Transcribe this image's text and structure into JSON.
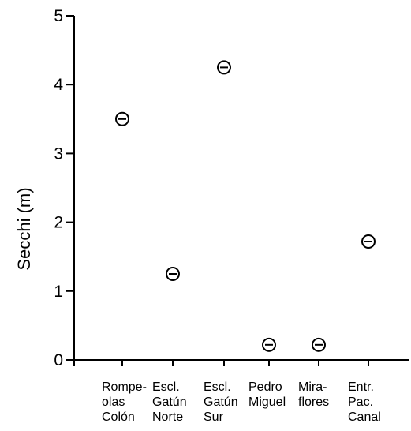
{
  "chart_data": {
    "type": "scatter",
    "title": "",
    "xlabel": "",
    "ylabel": "Secchi (m)",
    "ylim": [
      0,
      5
    ],
    "yticks": [
      0,
      1,
      2,
      3,
      4,
      5
    ],
    "grid": false,
    "legend": "none",
    "categories": [
      [
        "Rompe-",
        "olas",
        "Colón"
      ],
      [
        "Escl.",
        "Gatún",
        "Norte"
      ],
      [
        "Escl.",
        "Gatún",
        "Sur"
      ],
      [
        "Pedro",
        "Miguel"
      ],
      [
        "Mira-",
        "flores"
      ],
      [
        "Entr.",
        "Pac.",
        "Canal"
      ]
    ],
    "values": [
      3.5,
      1.25,
      4.25,
      0.22,
      0.22,
      1.72
    ],
    "marker": "circle-with-bar",
    "color": "#000000"
  }
}
